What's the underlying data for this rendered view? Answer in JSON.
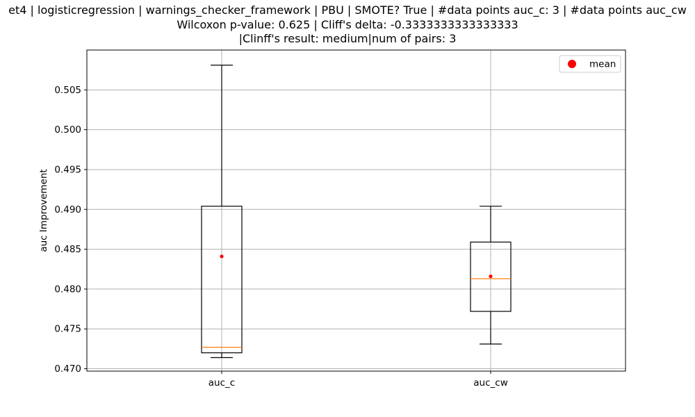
{
  "chart_data": {
    "type": "box",
    "title_lines": [
      "et4 | logisticregression | warnings_checker_framework | PBU | SMOTE? True | #data points auc_c: 3 | #data points auc_cw",
      "Wilcoxon p-value: 0.625 | Cliff's delta: -0.3333333333333333",
      "|Clinff's result: medium|num of pairs: 3"
    ],
    "xlabel": "",
    "ylabel": "auc Improvement",
    "categories": [
      "auc_c",
      "auc_cw"
    ],
    "ylim": [
      0.4697,
      0.51
    ],
    "yticks": [
      0.47,
      0.475,
      0.48,
      0.485,
      0.49,
      0.495,
      0.5,
      0.505
    ],
    "ytick_labels": [
      "0.470",
      "0.475",
      "0.480",
      "0.485",
      "0.490",
      "0.495",
      "0.500",
      "0.505"
    ],
    "grid": true,
    "legend": {
      "label": "mean",
      "placement": "top-right"
    },
    "boxes": [
      {
        "category": "auc_c",
        "whisker_low": 0.4714,
        "q1": 0.472,
        "median": 0.4727,
        "q3": 0.4904,
        "whisker_high": 0.5081,
        "mean": 0.4841
      },
      {
        "category": "auc_cw",
        "whisker_low": 0.4731,
        "q1": 0.4772,
        "median": 0.4813,
        "q3": 0.4859,
        "whisker_high": 0.4904,
        "mean": 0.4816
      }
    ],
    "colors": {
      "box": "#000000",
      "median": "#ff7f0e",
      "mean": "#ff0000",
      "grid": "#b0b0b0"
    }
  }
}
